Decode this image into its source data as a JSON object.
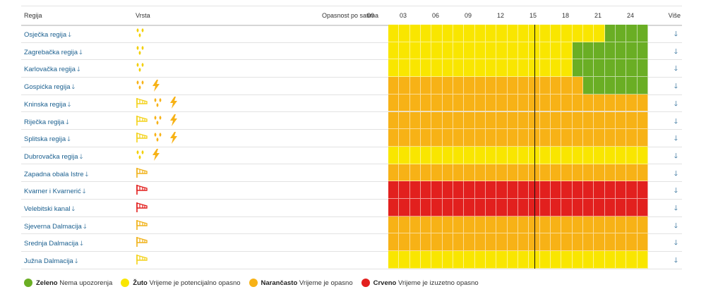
{
  "header": {
    "region": "Regija",
    "type": "Vrsta",
    "hours_label": "Opasnost po satima",
    "hours": [
      "00",
      "03",
      "06",
      "09",
      "12",
      "15",
      "18",
      "21",
      "24"
    ],
    "more": "Više"
  },
  "colors": {
    "green": "#6aae24",
    "yellow": "#f9e600",
    "orange": "#f7b216",
    "red": "#e2201e",
    "link": "#1a5f8f"
  },
  "arrow": "🡓",
  "rows": [
    {
      "name": "Osječka regija",
      "icons": [
        "rain"
      ],
      "segments": [
        [
          "yellow",
          0,
          20
        ],
        [
          "green",
          20,
          24
        ]
      ]
    },
    {
      "name": "Zagrebačka regija",
      "icons": [
        "rain"
      ],
      "segments": [
        [
          "yellow",
          0,
          17
        ],
        [
          "green",
          17,
          24
        ]
      ]
    },
    {
      "name": "Karlovačka regija",
      "icons": [
        "rain"
      ],
      "segments": [
        [
          "yellow",
          0,
          17
        ],
        [
          "green",
          17,
          24
        ]
      ]
    },
    {
      "name": "Gospićka regija",
      "icons": [
        "rain-orange",
        "lightning"
      ],
      "segments": [
        [
          "orange",
          0,
          18
        ],
        [
          "green",
          18,
          24
        ]
      ]
    },
    {
      "name": "Kninska regija",
      "icons": [
        "wind-yellow",
        "rain-orange",
        "lightning"
      ],
      "segments": [
        [
          "orange",
          0,
          24
        ]
      ]
    },
    {
      "name": "Riječka regija",
      "icons": [
        "wind-yellow",
        "rain-orange",
        "lightning"
      ],
      "segments": [
        [
          "orange",
          0,
          24
        ]
      ]
    },
    {
      "name": "Splitska regija",
      "icons": [
        "wind-yellow",
        "rain-orange",
        "lightning"
      ],
      "segments": [
        [
          "orange",
          0,
          24
        ]
      ]
    },
    {
      "name": "Dubrovačka regija",
      "icons": [
        "rain",
        "lightning"
      ],
      "segments": [
        [
          "yellow",
          0,
          24
        ]
      ]
    },
    {
      "name": "Zapadna obala Istre",
      "icons": [
        "wind-orange"
      ],
      "segments": [
        [
          "orange",
          0,
          24
        ]
      ]
    },
    {
      "name": "Kvarner i Kvarnerić",
      "icons": [
        "wind-red"
      ],
      "segments": [
        [
          "red",
          0,
          24
        ]
      ]
    },
    {
      "name": "Velebitski kanal",
      "icons": [
        "wind-red"
      ],
      "segments": [
        [
          "red",
          0,
          24
        ]
      ]
    },
    {
      "name": "Sjeverna Dalmacija",
      "icons": [
        "wind-orange"
      ],
      "segments": [
        [
          "orange",
          0,
          24
        ]
      ]
    },
    {
      "name": "Srednja Dalmacija",
      "icons": [
        "wind-orange"
      ],
      "segments": [
        [
          "orange",
          0,
          24
        ]
      ]
    },
    {
      "name": "Južna Dalmacija",
      "icons": [
        "wind-yellow"
      ],
      "segments": [
        [
          "yellow",
          0,
          24
        ]
      ]
    }
  ],
  "current_hour": 13,
  "legend": [
    {
      "color": "green",
      "bold": "Zeleno",
      "text": "Nema upozorenja"
    },
    {
      "color": "yellow",
      "bold": "Žuto",
      "text": "Vrijeme je potencijalno opasno"
    },
    {
      "color": "orange",
      "bold": "Narančasto",
      "text": "Vrijeme je opasno"
    },
    {
      "color": "red",
      "bold": "Crveno",
      "text": "Vrijeme je izuzetno opasno"
    }
  ]
}
